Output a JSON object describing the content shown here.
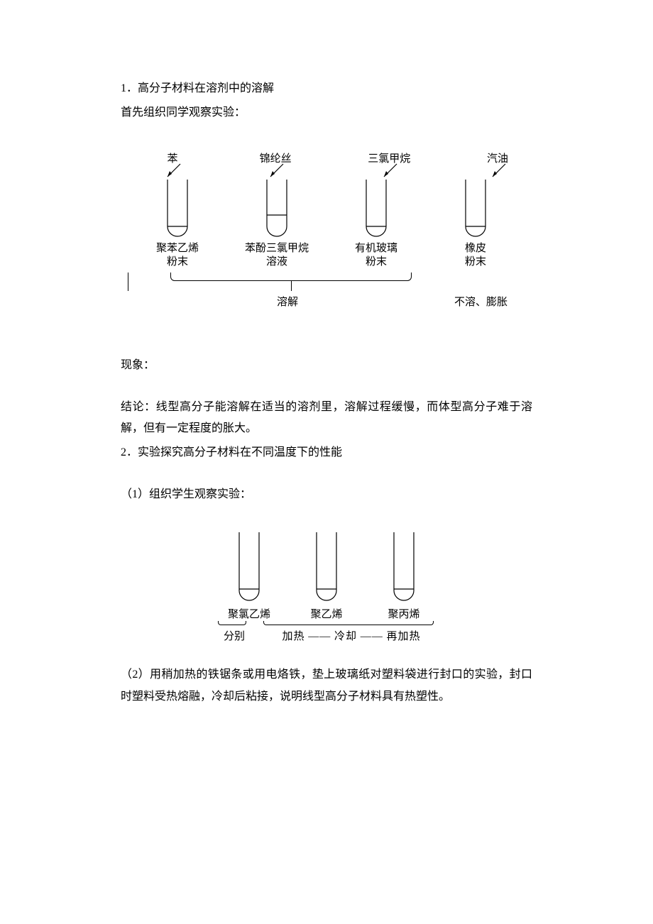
{
  "text": {
    "p1": "1．高分子材料在溶剂中的溶解",
    "p2": "首先组织同学观察实验：",
    "p3": "现象：",
    "p4": "结论：线型高分子能溶解在适当的溶剂里，溶解过程缓慢，而体型高分子难于溶解，但有一定程度的胀大。",
    "p5": "2．实验探究高分子材料在不同温度下的性能",
    "p6": "（1）组织学生观察实验：",
    "p7": "（2）用稍加热的铁锯条或用电烙铁，垫上玻璃纸对塑料袋进行封口的实验，封口时塑料受热熔融，冷却后粘接，说明线型高分子材料具有热塑性。"
  },
  "diagram1": {
    "solvents": [
      "苯",
      "锦纶丝",
      "三氯甲烷",
      "汽油"
    ],
    "tubes": [
      {
        "lines": [
          "聚苯乙烯",
          "粉末"
        ],
        "fill_h": 14
      },
      {
        "lines": [
          "苯酚三氯甲烷",
          "溶液"
        ],
        "fill_h": 30
      },
      {
        "lines": [
          "有机玻璃",
          "粉末"
        ],
        "fill_h": 14
      },
      {
        "lines": [
          "橡皮",
          "粉末"
        ],
        "fill_h": 14
      }
    ],
    "results": [
      "溶解",
      "不溶、膨胀"
    ],
    "style": {
      "tube_w": 28,
      "tube_h": 80,
      "stroke": "#000000",
      "stroke_width": 1.2
    }
  },
  "diagram2": {
    "tubes": [
      {
        "label": "聚氯乙烯",
        "fill_h": 16
      },
      {
        "label": "聚乙烯",
        "fill_h": 16
      },
      {
        "label": "聚丙烯",
        "fill_h": 16
      }
    ],
    "sep_label": "分别",
    "process": "加热 —— 冷却 —— 再加热",
    "style": {
      "tube_w": 28,
      "tube_h": 96,
      "stroke": "#000000",
      "stroke_width": 1.2
    }
  }
}
